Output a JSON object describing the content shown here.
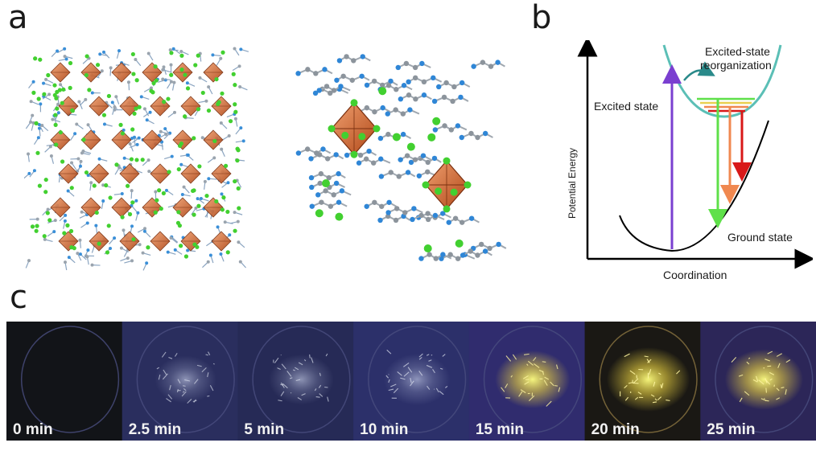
{
  "panels": {
    "a": {
      "letter": "a"
    },
    "b": {
      "letter": "b",
      "labels": {
        "excited_reorg_line1": "Excited-state",
        "excited_reorg_line2": "reorganization",
        "excited_state": "Excited state",
        "ground_state": "Ground state",
        "y_axis": "Potential Energy",
        "x_axis": "Coordination"
      },
      "colors": {
        "excited_curve": "#5bbfb6",
        "ground_curve": "#000000",
        "absorption_arrow": "#7a3fd0",
        "emission_green": "#5fe04a",
        "emission_orange": "#f08850",
        "emission_red": "#d81818"
      }
    },
    "c": {
      "letter": "c",
      "frames": [
        {
          "label": "0 min"
        },
        {
          "label": "2.5 min"
        },
        {
          "label": "5 min"
        },
        {
          "label": "10 min"
        },
        {
          "label": "15 min"
        },
        {
          "label": "20 min"
        },
        {
          "label": "25 min"
        }
      ]
    }
  }
}
